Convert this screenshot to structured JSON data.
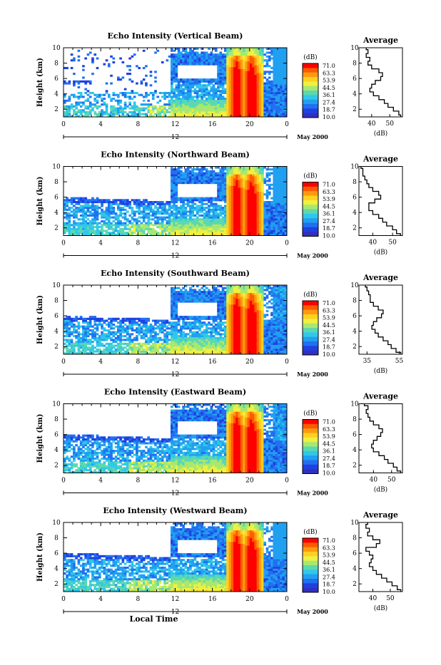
{
  "common": {
    "ylabel": "Height (km)",
    "x_ticks": [
      "0",
      "4",
      "8",
      "12",
      "16",
      "20",
      "0"
    ],
    "y_ticks": [
      "2",
      "4",
      "6",
      "8",
      "10"
    ],
    "date_marker": "12",
    "date_label": "May 2000",
    "xlabel": "Local Time",
    "colorbar_unit": "(dB)",
    "colorbar_levels": [
      "71.0",
      "63.3",
      "53.9",
      "44.5",
      "36.1",
      "27.4",
      "18.7",
      "10.0"
    ],
    "colorbar_colors": [
      "#ff0000",
      "#ff5a00",
      "#ff9a10",
      "#ffd020",
      "#f0f040",
      "#a8e870",
      "#5cd8b0",
      "#30c8e8",
      "#20a0f0",
      "#2070f0",
      "#2040e0",
      "#3030c0"
    ],
    "avg_title": "Average",
    "avg_xlabel": "(dB)"
  },
  "chart_data": [
    {
      "type": "heatmap",
      "title": "Echo Intensity (Vertical Beam)",
      "xlabel": "",
      "ylabel": "Height (km)",
      "xlim": [
        0,
        24
      ],
      "ylim": [
        1,
        10
      ],
      "colorbar": {
        "unit": "dB",
        "min": 10.0,
        "max": 71.0
      },
      "average_profile": {
        "type": "line",
        "title": "Average",
        "xlabel": "(dB)",
        "x_ticks": [
          "40",
          "50"
        ],
        "xlim": [
          33,
          57
        ],
        "ylim": [
          1,
          10
        ],
        "height": [
          1.0,
          1.5,
          2.0,
          2.5,
          3.0,
          3.5,
          4.0,
          4.5,
          5.0,
          5.5,
          6.0,
          6.5,
          7.0,
          7.5,
          8.0,
          8.5,
          9.0,
          9.5,
          10.0
        ],
        "values": [
          56,
          55,
          52,
          49,
          47,
          44,
          41,
          39,
          40,
          42,
          45,
          46,
          44,
          40,
          38,
          39,
          37,
          38,
          37
        ]
      }
    },
    {
      "type": "heatmap",
      "title": "Echo Intensity (Northward Beam)",
      "xlabel": "",
      "ylabel": "Height (km)",
      "xlim": [
        0,
        24
      ],
      "ylim": [
        1,
        10
      ],
      "colorbar": {
        "unit": "dB",
        "min": 10.0,
        "max": 71.0
      },
      "average_profile": {
        "type": "line",
        "title": "Average",
        "xlabel": "(dB)",
        "x_ticks": [
          "40",
          "50"
        ],
        "xlim": [
          33,
          55
        ],
        "ylim": [
          1,
          10
        ],
        "height": [
          1.0,
          1.5,
          2.0,
          2.5,
          3.0,
          3.5,
          4.0,
          4.5,
          5.0,
          5.5,
          6.0,
          6.5,
          7.0,
          7.5,
          8.0,
          8.5,
          9.0,
          9.5,
          10.0
        ],
        "values": [
          54,
          52,
          50,
          47,
          45,
          43,
          40,
          38,
          38,
          41,
          44,
          43,
          40,
          38,
          37,
          36,
          35,
          35,
          34
        ]
      }
    },
    {
      "type": "heatmap",
      "title": "Echo Intensity (Southward Beam)",
      "xlabel": "",
      "ylabel": "Height (km)",
      "xlim": [
        0,
        24
      ],
      "ylim": [
        1,
        10
      ],
      "colorbar": {
        "unit": "dB",
        "min": 10.0,
        "max": 71.0
      },
      "average_profile": {
        "type": "line",
        "title": "Average",
        "xlabel": "(dB)",
        "x_ticks": [
          "35",
          "55"
        ],
        "xlim": [
          30,
          57
        ],
        "ylim": [
          1,
          10
        ],
        "height": [
          1.0,
          1.5,
          2.0,
          2.5,
          3.0,
          3.5,
          4.0,
          4.5,
          5.0,
          5.5,
          6.0,
          6.5,
          7.0,
          7.5,
          8.0,
          8.5,
          9.0,
          9.5,
          10.0
        ],
        "values": [
          56,
          53,
          50,
          48,
          45,
          42,
          40,
          38,
          39,
          41,
          44,
          45,
          42,
          39,
          37,
          37,
          36,
          35,
          34
        ]
      }
    },
    {
      "type": "heatmap",
      "title": "Echo Intensity (Eastward Beam)",
      "xlabel": "",
      "ylabel": "Height (km)",
      "xlim": [
        0,
        24
      ],
      "ylim": [
        1,
        10
      ],
      "colorbar": {
        "unit": "dB",
        "min": 10.0,
        "max": 71.0
      },
      "average_profile": {
        "type": "line",
        "title": "Average",
        "xlabel": "(dB)",
        "x_ticks": [
          "40",
          "50"
        ],
        "xlim": [
          32,
          56
        ],
        "ylim": [
          1,
          10
        ],
        "height": [
          1.0,
          1.5,
          2.0,
          2.5,
          3.0,
          3.5,
          4.0,
          4.5,
          5.0,
          5.5,
          6.0,
          6.5,
          7.0,
          7.5,
          8.0,
          8.5,
          9.0,
          9.5,
          10.0
        ],
        "values": [
          55,
          53,
          51,
          48,
          46,
          43,
          40,
          39,
          40,
          42,
          44,
          45,
          43,
          40,
          38,
          37,
          36,
          37,
          35
        ]
      }
    },
    {
      "type": "heatmap",
      "title": "Echo Intensity (Westward Beam)",
      "xlabel": "Local Time",
      "ylabel": "Height (km)",
      "xlim": [
        0,
        24
      ],
      "ylim": [
        1,
        10
      ],
      "colorbar": {
        "unit": "dB",
        "min": 10.0,
        "max": 71.0
      },
      "average_profile": {
        "type": "line",
        "title": "Average",
        "xlabel": "(dB)",
        "x_ticks": [
          "40",
          "50"
        ],
        "xlim": [
          32,
          57
        ],
        "ylim": [
          1,
          10
        ],
        "height": [
          1.0,
          1.5,
          2.0,
          2.5,
          3.0,
          3.5,
          4.0,
          4.5,
          5.0,
          5.5,
          6.0,
          6.5,
          7.0,
          7.5,
          8.0,
          8.5,
          9.0,
          9.5,
          10.0
        ],
        "values": [
          56,
          54,
          51,
          48,
          45,
          42,
          40,
          38,
          39,
          40,
          38,
          36,
          42,
          44,
          40,
          37,
          38,
          36,
          37
        ]
      }
    }
  ]
}
